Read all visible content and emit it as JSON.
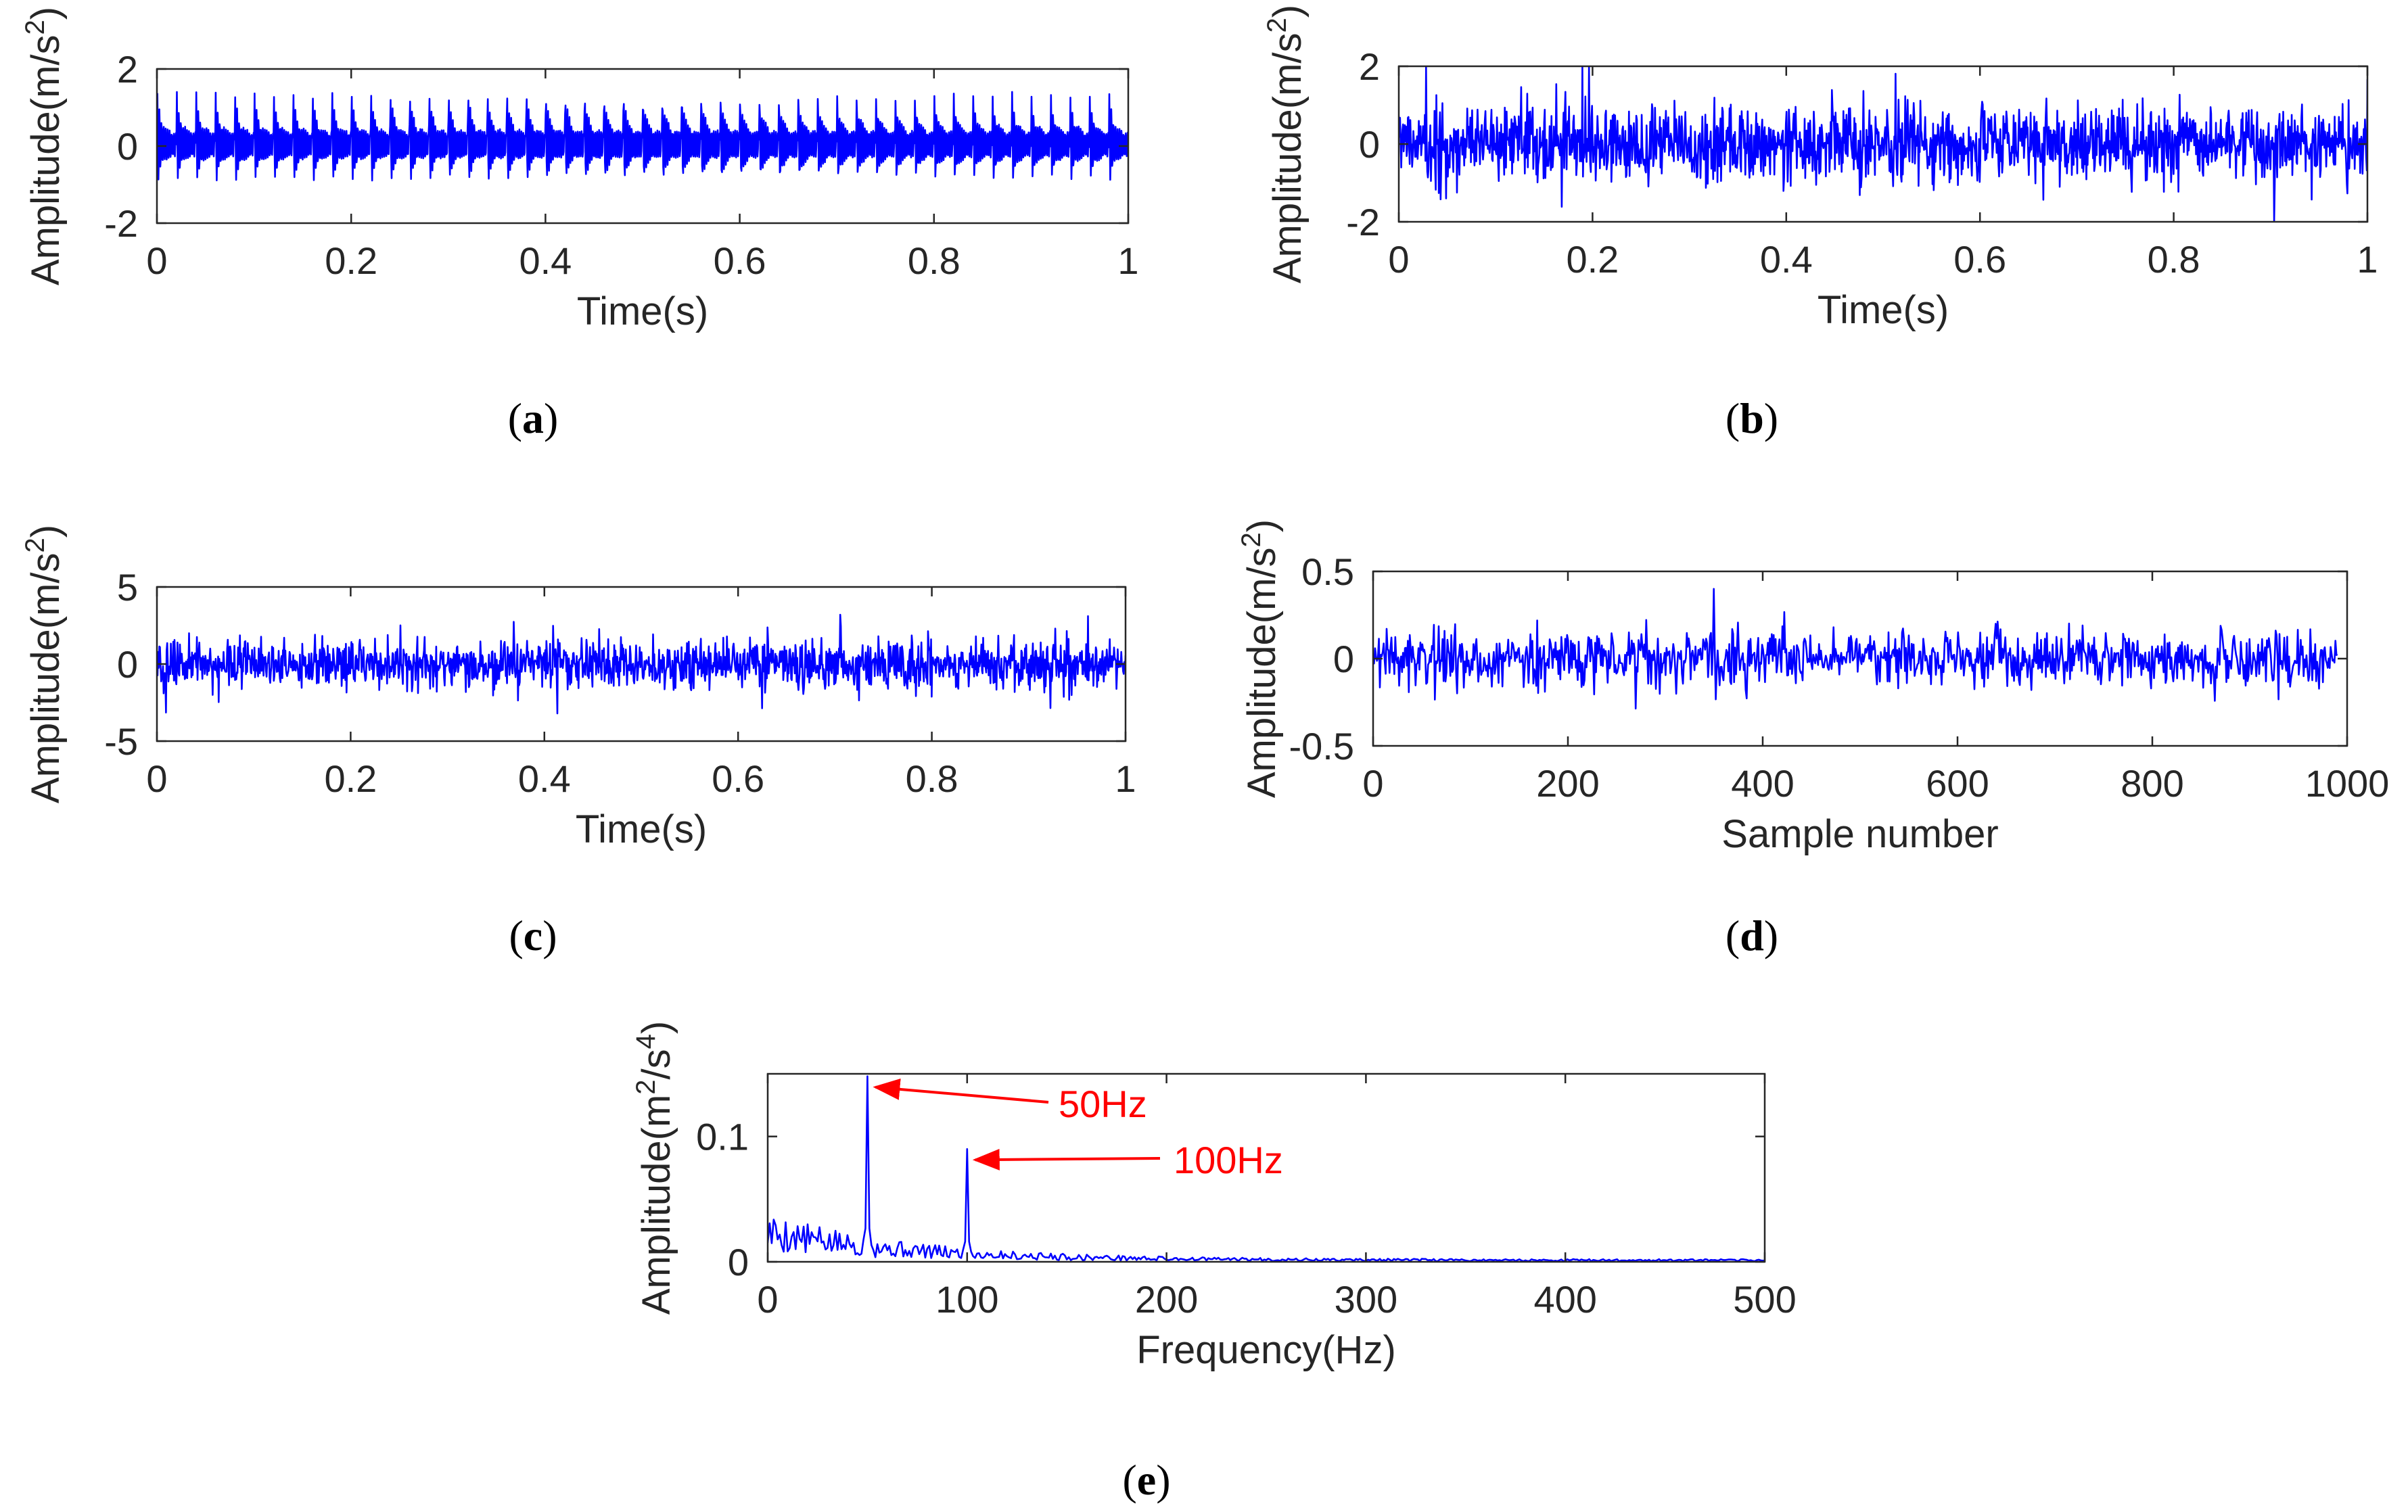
{
  "colors": {
    "series": "#0000ff",
    "axis": "#262626",
    "annotation": "#ff0000"
  },
  "chart_data": [
    {
      "id": "a",
      "type": "line",
      "caption_letter": "a",
      "ylabel": "Amplitude(m/s",
      "ylabel_sup": "2",
      "ylabel_tail": ")",
      "xlabel": "Time(s)",
      "xlim": [
        0,
        1
      ],
      "ylim": [
        -2,
        2
      ],
      "xticks": [
        0,
        0.2,
        0.4,
        0.6,
        0.8,
        1
      ],
      "yticks": [
        -2,
        0,
        2
      ],
      "signal": {
        "kind": "periodic_impulses",
        "n": 2000,
        "period": 0.02,
        "peak": 1.6,
        "trough": -1.2,
        "decay": 0.004
      }
    },
    {
      "id": "b",
      "type": "line",
      "caption_letter": "b",
      "ylabel": "Amplitude(m/s",
      "ylabel_sup": "2",
      "ylabel_tail": ")",
      "xlabel": "Time(s)",
      "xlim": [
        0,
        1
      ],
      "ylim": [
        -2,
        2
      ],
      "xticks": [
        0,
        0.2,
        0.4,
        0.6,
        0.8,
        1
      ],
      "yticks": [
        -2,
        0,
        2
      ],
      "signal": {
        "kind": "noise",
        "n": 1600,
        "std": 0.5,
        "max_abs": 2.0,
        "seed": 7
      }
    },
    {
      "id": "c",
      "type": "line",
      "caption_letter": "c",
      "ylabel": "Amplitude(m/s",
      "ylabel_sup": "2",
      "ylabel_tail": ")",
      "xlabel": "Time(s)",
      "xlim": [
        0,
        1
      ],
      "ylim": [
        -5,
        5
      ],
      "xticks": [
        0,
        0.2,
        0.4,
        0.6,
        0.8,
        1
      ],
      "yticks": [
        -5,
        0,
        5
      ],
      "signal": {
        "kind": "noise",
        "n": 1600,
        "std": 0.8,
        "max_abs": 3.2,
        "seed": 21
      }
    },
    {
      "id": "d",
      "type": "line",
      "caption_letter": "d",
      "ylabel": "Amplitude(m/s",
      "ylabel_sup": "2",
      "ylabel_tail": ")",
      "xlabel": "Sample number",
      "xlim": [
        0,
        1000
      ],
      "ylim": [
        -0.5,
        0.5
      ],
      "xticks": [
        0,
        200,
        400,
        600,
        800,
        1000
      ],
      "yticks": [
        -0.5,
        0,
        0.5
      ],
      "signal": {
        "kind": "noise",
        "n": 1000,
        "x_end": 990,
        "std": 0.08,
        "max_abs": 0.4,
        "seed": 33
      }
    },
    {
      "id": "e",
      "type": "line",
      "caption_letter": "e",
      "ylabel": "Amplitude(m",
      "ylabel_sup": "2",
      "ylabel_mid": "/s",
      "ylabel_sup2": "4",
      "ylabel_tail": ")",
      "xlabel": "Frequency(Hz)",
      "xlim": [
        0,
        500
      ],
      "ylim": [
        0,
        0.15
      ],
      "xticks": [
        0,
        100,
        200,
        300,
        400,
        500
      ],
      "yticks": [
        0,
        0.1
      ],
      "peaks": [
        {
          "freq": 50,
          "amplitude": 0.148
        },
        {
          "freq": 100,
          "amplitude": 0.09
        }
      ],
      "signal": {
        "kind": "spectrum",
        "n": 500,
        "seed": 5
      },
      "annotations": [
        {
          "text": "50Hz",
          "target_freq": 50,
          "target_amp": 0.148
        },
        {
          "text": "100Hz",
          "target_freq": 100,
          "target_amp": 0.09
        }
      ]
    }
  ]
}
